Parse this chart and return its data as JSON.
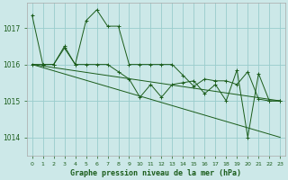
{
  "background_color": "#cce8e8",
  "grid_color": "#99cccc",
  "line_color": "#1a5c1a",
  "title": "Graphe pression niveau de la mer (hPa)",
  "xlim": [
    -0.5,
    23.5
  ],
  "ylim": [
    1013.5,
    1017.7
  ],
  "yticks": [
    1014,
    1015,
    1016,
    1017
  ],
  "xtick_labels": [
    "0",
    "1",
    "2",
    "3",
    "4",
    "5",
    "6",
    "7",
    "8",
    "9",
    "10",
    "11",
    "12",
    "13",
    "14",
    "15",
    "16",
    "17",
    "18",
    "19",
    "20",
    "21",
    "22",
    "23"
  ],
  "series": [
    {
      "x": [
        0,
        1,
        2,
        3,
        4,
        5,
        6,
        7,
        8,
        9,
        10,
        11,
        12,
        13,
        14,
        15,
        16,
        17,
        18,
        19,
        20,
        21,
        22,
        23
      ],
      "y": [
        1017.35,
        1016.0,
        1016.0,
        1016.5,
        1016.0,
        1017.2,
        1017.5,
        1017.05,
        1017.05,
        1016.0,
        1016.0,
        1016.0,
        1016.0,
        1016.0,
        1015.7,
        1015.4,
        1015.6,
        1015.55,
        1015.55,
        1015.45,
        1015.8,
        1015.05,
        1015.0,
        1015.0
      ],
      "marker": "+"
    },
    {
      "x": [
        0,
        1,
        2,
        3,
        4,
        5,
        6,
        7,
        8,
        9,
        10,
        11,
        12,
        13,
        14,
        15,
        16,
        17,
        18,
        19,
        20,
        21,
        22,
        23
      ],
      "y": [
        1016.0,
        1016.0,
        1016.0,
        1016.45,
        1016.0,
        1016.0,
        1016.0,
        1016.0,
        1015.8,
        1015.6,
        1015.1,
        1015.45,
        1015.1,
        1015.45,
        1015.5,
        1015.55,
        1015.2,
        1015.45,
        1015.0,
        1015.85,
        1014.0,
        1015.75,
        1015.0,
        1015.0
      ],
      "marker": "+"
    },
    {
      "x": [
        0,
        23
      ],
      "y": [
        1016.0,
        1015.0
      ],
      "marker": null
    },
    {
      "x": [
        0,
        23
      ],
      "y": [
        1016.0,
        1014.0
      ],
      "marker": null
    }
  ]
}
